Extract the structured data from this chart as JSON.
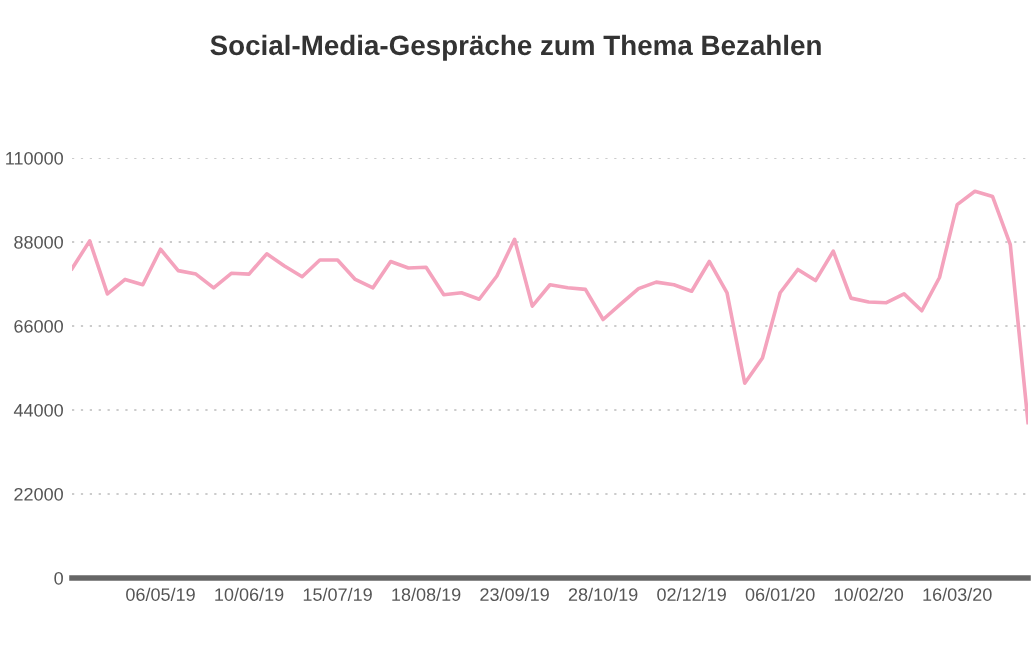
{
  "chart_data": {
    "type": "line",
    "title": "Social-Media-Gespräche zum Thema Bezahlen",
    "categories": [
      null,
      null,
      null,
      null,
      null,
      "06/05/19",
      null,
      null,
      null,
      null,
      "10/06/19",
      null,
      null,
      null,
      null,
      "15/07/19",
      null,
      null,
      null,
      null,
      "18/08/19",
      null,
      null,
      null,
      null,
      "23/09/19",
      null,
      null,
      null,
      null,
      "28/10/19",
      null,
      null,
      null,
      null,
      "02/12/19",
      null,
      null,
      null,
      null,
      "06/01/20",
      null,
      null,
      null,
      null,
      "10/02/20",
      null,
      null,
      null,
      null,
      "16/03/20",
      null,
      null,
      null,
      null
    ],
    "series": [
      {
        "color": "#f4a3bd",
        "values": [
          81000,
          88300,
          74400,
          78200,
          76800,
          86100,
          80500,
          79600,
          76000,
          79800,
          79600,
          84900,
          81700,
          78900,
          83300,
          83300,
          78200,
          76000,
          82900,
          81200,
          81400,
          74200,
          74700,
          73000,
          79100,
          88700,
          71200,
          76800,
          76000,
          75600,
          67700,
          71800,
          75800,
          77500,
          76800,
          75100,
          82900,
          74700,
          51000,
          57600,
          74700,
          80800,
          77900,
          85600,
          73300,
          72300,
          72100,
          74400,
          70000,
          78700,
          97800,
          101300,
          99900,
          87300,
          40700
        ]
      }
    ],
    "ylim": [
      0,
      110000
    ],
    "yticks": [
      0,
      22000,
      44000,
      66000,
      88000,
      110000
    ],
    "grid": "y",
    "marker": "none",
    "line_style": "solid"
  }
}
